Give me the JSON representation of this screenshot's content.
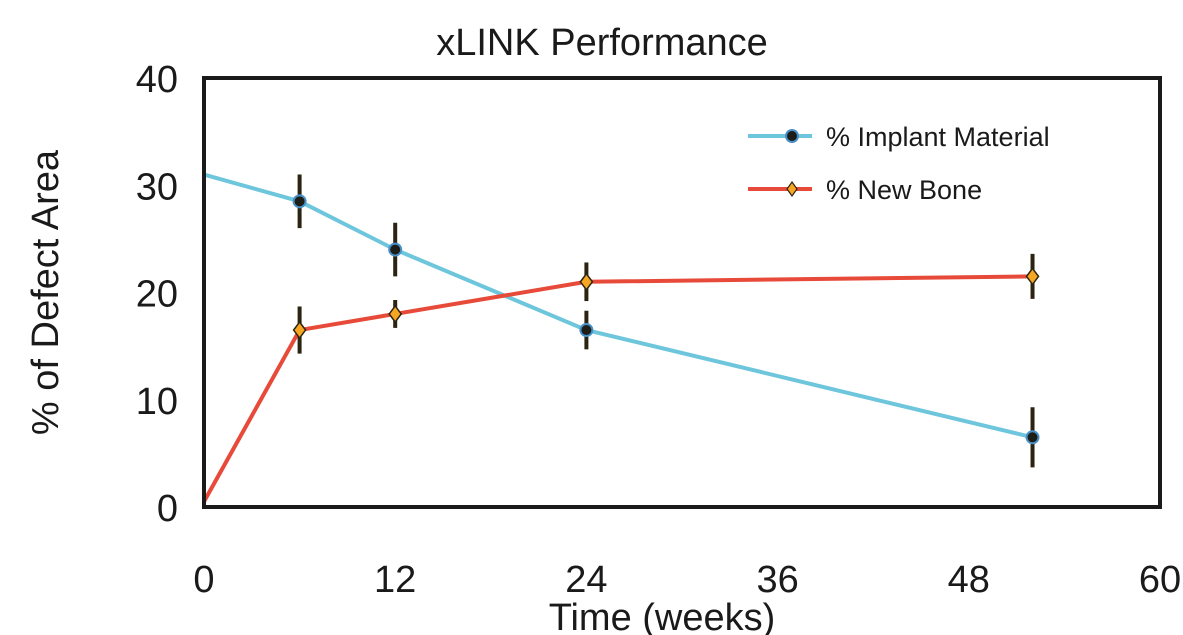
{
  "chart_data": {
    "type": "line",
    "title": "xLINK Performance",
    "xlabel": "Time (weeks)",
    "ylabel": "% of Defect Area",
    "xlim": [
      0,
      60
    ],
    "ylim": [
      0,
      40
    ],
    "xticks": [
      0,
      12,
      24,
      36,
      48,
      60
    ],
    "yticks": [
      0,
      10,
      20,
      30,
      40
    ],
    "grid": false,
    "legend_position": "top-right",
    "series": [
      {
        "name": "% Implant Material",
        "color": "#6ec6dc",
        "marker_color": "#4a90c8",
        "x": [
          0,
          6,
          12,
          24,
          52
        ],
        "y": [
          31,
          28.5,
          24,
          16.5,
          6.5
        ],
        "error": [
          null,
          2.5,
          2.5,
          1.8,
          2.8
        ]
      },
      {
        "name": "%  New Bone",
        "color": "#e84a3a",
        "marker_color": "#f5a623",
        "x": [
          0,
          6,
          12,
          24,
          52
        ],
        "y": [
          0.5,
          16.5,
          18,
          21,
          21.5
        ],
        "error": [
          null,
          2.2,
          1.3,
          1.8,
          2.1
        ]
      }
    ]
  }
}
